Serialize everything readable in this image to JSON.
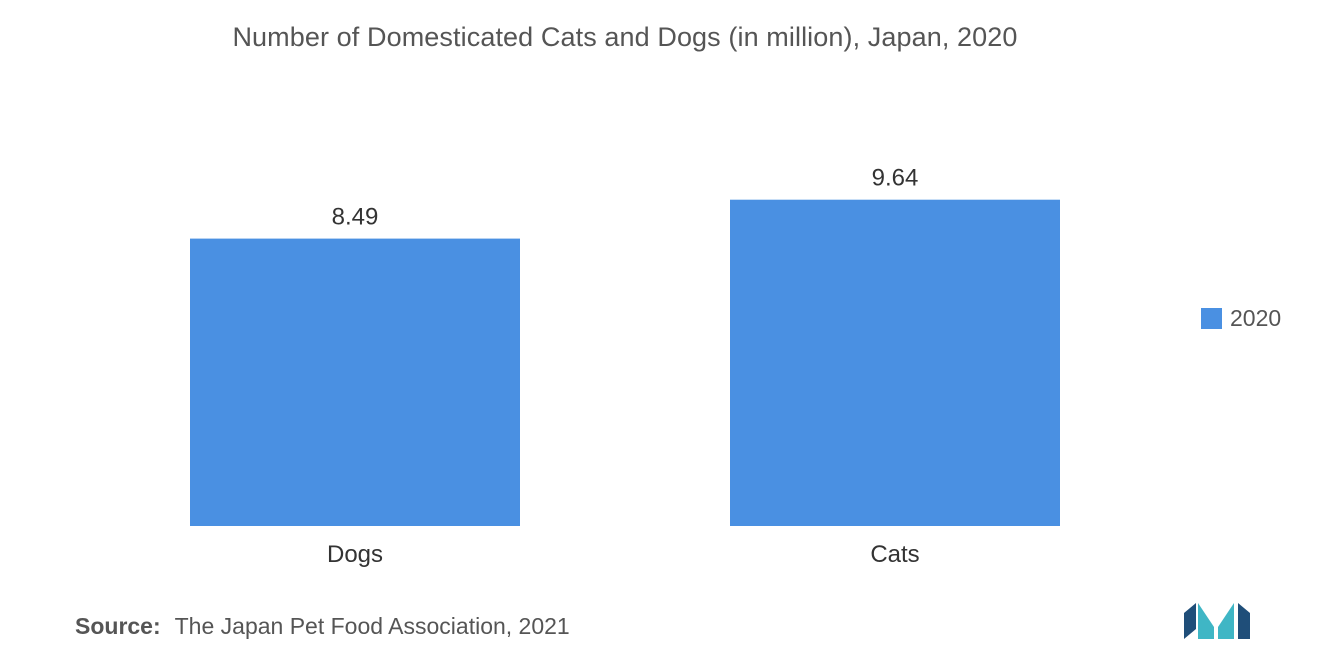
{
  "chart_data": {
    "type": "bar",
    "title": "Number of Domesticated Cats and Dogs (in million), Japan, 2020",
    "categories": [
      "Dogs",
      "Cats"
    ],
    "series": [
      {
        "name": "2020",
        "values": [
          8.49,
          9.64
        ],
        "color": "#4a90e2"
      }
    ],
    "data_labels": [
      "8.49",
      "9.64"
    ],
    "xlabel": "",
    "ylabel": "",
    "ylim": [
      0,
      11.05
    ],
    "grid": false,
    "legend_position": "right"
  },
  "source": {
    "label": "Source:",
    "text": "The Japan Pet Food Association, 2021"
  },
  "logo": {
    "icon": "mordor-intelligence-logo",
    "colors": [
      "#1f4e79",
      "#3fb6c5"
    ]
  }
}
